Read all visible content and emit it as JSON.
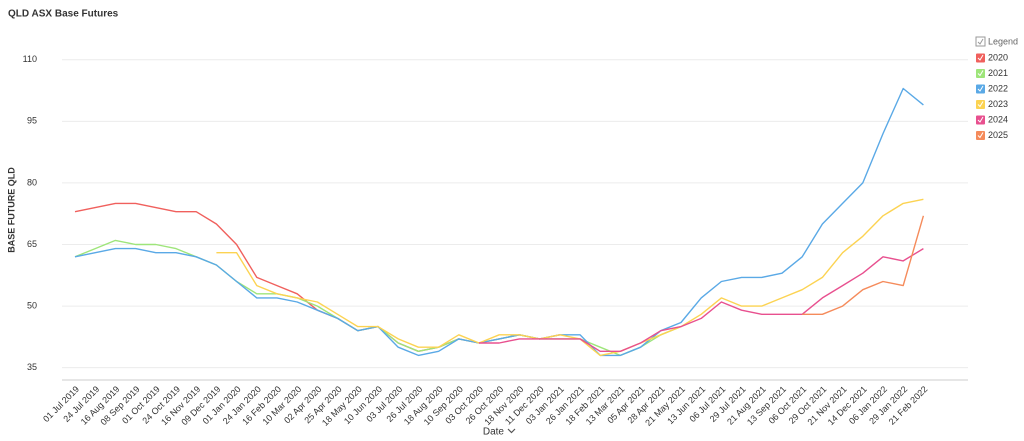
{
  "chart_data": {
    "type": "line",
    "title": "QLD ASX Base Futures",
    "y_label": "BASE FUTURE QLD",
    "x_label": "Date",
    "legend_title": "Legend",
    "legend_position": "right",
    "grid": true,
    "ylim": [
      32,
      117
    ],
    "yticks": [
      35,
      50,
      65,
      80,
      95,
      110
    ],
    "categories": [
      "01 Jul 2019",
      "24 Jul 2019",
      "16 Aug 2019",
      "08 Sep 2019",
      "01 Oct 2019",
      "24 Oct 2019",
      "16 Nov 2019",
      "09 Dec 2019",
      "01 Jan 2020",
      "24 Jan 2020",
      "16 Feb 2020",
      "10 Mar 2020",
      "02 Apr 2020",
      "25 Apr 2020",
      "18 May 2020",
      "10 Jun 2020",
      "03 Jul 2020",
      "26 Jul 2020",
      "18 Aug 2020",
      "10 Sep 2020",
      "03 Oct 2020",
      "26 Oct 2020",
      "18 Nov 2020",
      "11 Dec 2020",
      "03 Jan 2021",
      "26 Jan 2021",
      "18 Feb 2021",
      "13 Mar 2021",
      "05 Apr 2021",
      "28 Apr 2021",
      "21 May 2021",
      "13 Jun 2021",
      "06 Jul 2021",
      "29 Jul 2021",
      "21 Aug 2021",
      "13 Sep 2021",
      "06 Oct 2021",
      "29 Oct 2021",
      "21 Nov 2021",
      "14 Dec 2021",
      "06 Jan 2022",
      "29 Jan 2022",
      "21 Feb 2022"
    ],
    "series": [
      {
        "name": "2020",
        "color": "#f0605d",
        "values": [
          73,
          74,
          75,
          75,
          74,
          73,
          73,
          70,
          65,
          57,
          55,
          53,
          49,
          47,
          44,
          45,
          41,
          39,
          40,
          42,
          41,
          42,
          43,
          42,
          43,
          null,
          null,
          null,
          null,
          null,
          null,
          null,
          null,
          null,
          null,
          null,
          null,
          null,
          null,
          null,
          null,
          null,
          null
        ]
      },
      {
        "name": "2021",
        "color": "#9ee57a",
        "values": [
          62,
          64,
          66,
          65,
          65,
          64,
          62,
          60,
          56,
          53,
          53,
          52,
          50,
          47,
          44,
          45,
          41,
          39,
          40,
          42,
          41,
          42,
          43,
          42,
          42,
          42,
          40,
          38,
          40,
          43,
          45,
          null,
          null,
          null,
          null,
          null,
          null,
          null,
          null,
          null,
          null,
          null,
          null
        ]
      },
      {
        "name": "2022",
        "color": "#5aa9e6",
        "values": [
          62,
          63,
          64,
          64,
          63,
          63,
          62,
          60,
          56,
          52,
          52,
          51,
          49,
          47,
          44,
          45,
          40,
          38,
          39,
          42,
          41,
          42,
          43,
          42,
          43,
          43,
          38,
          38,
          40,
          44,
          46,
          52,
          56,
          57,
          57,
          58,
          62,
          70,
          75,
          80,
          92,
          103,
          99
        ]
      },
      {
        "name": "2023",
        "color": "#fcd352",
        "values": [
          null,
          null,
          null,
          null,
          null,
          null,
          null,
          63,
          63,
          55,
          53,
          52,
          51,
          48,
          45,
          45,
          42,
          40,
          40,
          43,
          41,
          43,
          43,
          42,
          43,
          42,
          38,
          39,
          41,
          43,
          45,
          48,
          52,
          50,
          50,
          52,
          54,
          57,
          63,
          67,
          72,
          75,
          76
        ]
      },
      {
        "name": "2024",
        "color": "#e8508f",
        "values": [
          null,
          null,
          null,
          null,
          null,
          null,
          null,
          null,
          null,
          null,
          null,
          null,
          null,
          null,
          null,
          null,
          null,
          null,
          null,
          null,
          41,
          41,
          42,
          42,
          42,
          42,
          39,
          39,
          41,
          44,
          45,
          47,
          51,
          49,
          48,
          48,
          48,
          52,
          55,
          58,
          62,
          61,
          64
        ]
      },
      {
        "name": "2025",
        "color": "#f58b5b",
        "values": [
          null,
          null,
          null,
          null,
          null,
          null,
          null,
          null,
          null,
          null,
          null,
          null,
          null,
          null,
          null,
          null,
          null,
          null,
          null,
          null,
          null,
          null,
          null,
          null,
          null,
          null,
          null,
          null,
          null,
          null,
          null,
          null,
          null,
          null,
          null,
          null,
          48,
          48,
          50,
          54,
          56,
          55,
          72
        ]
      }
    ]
  }
}
